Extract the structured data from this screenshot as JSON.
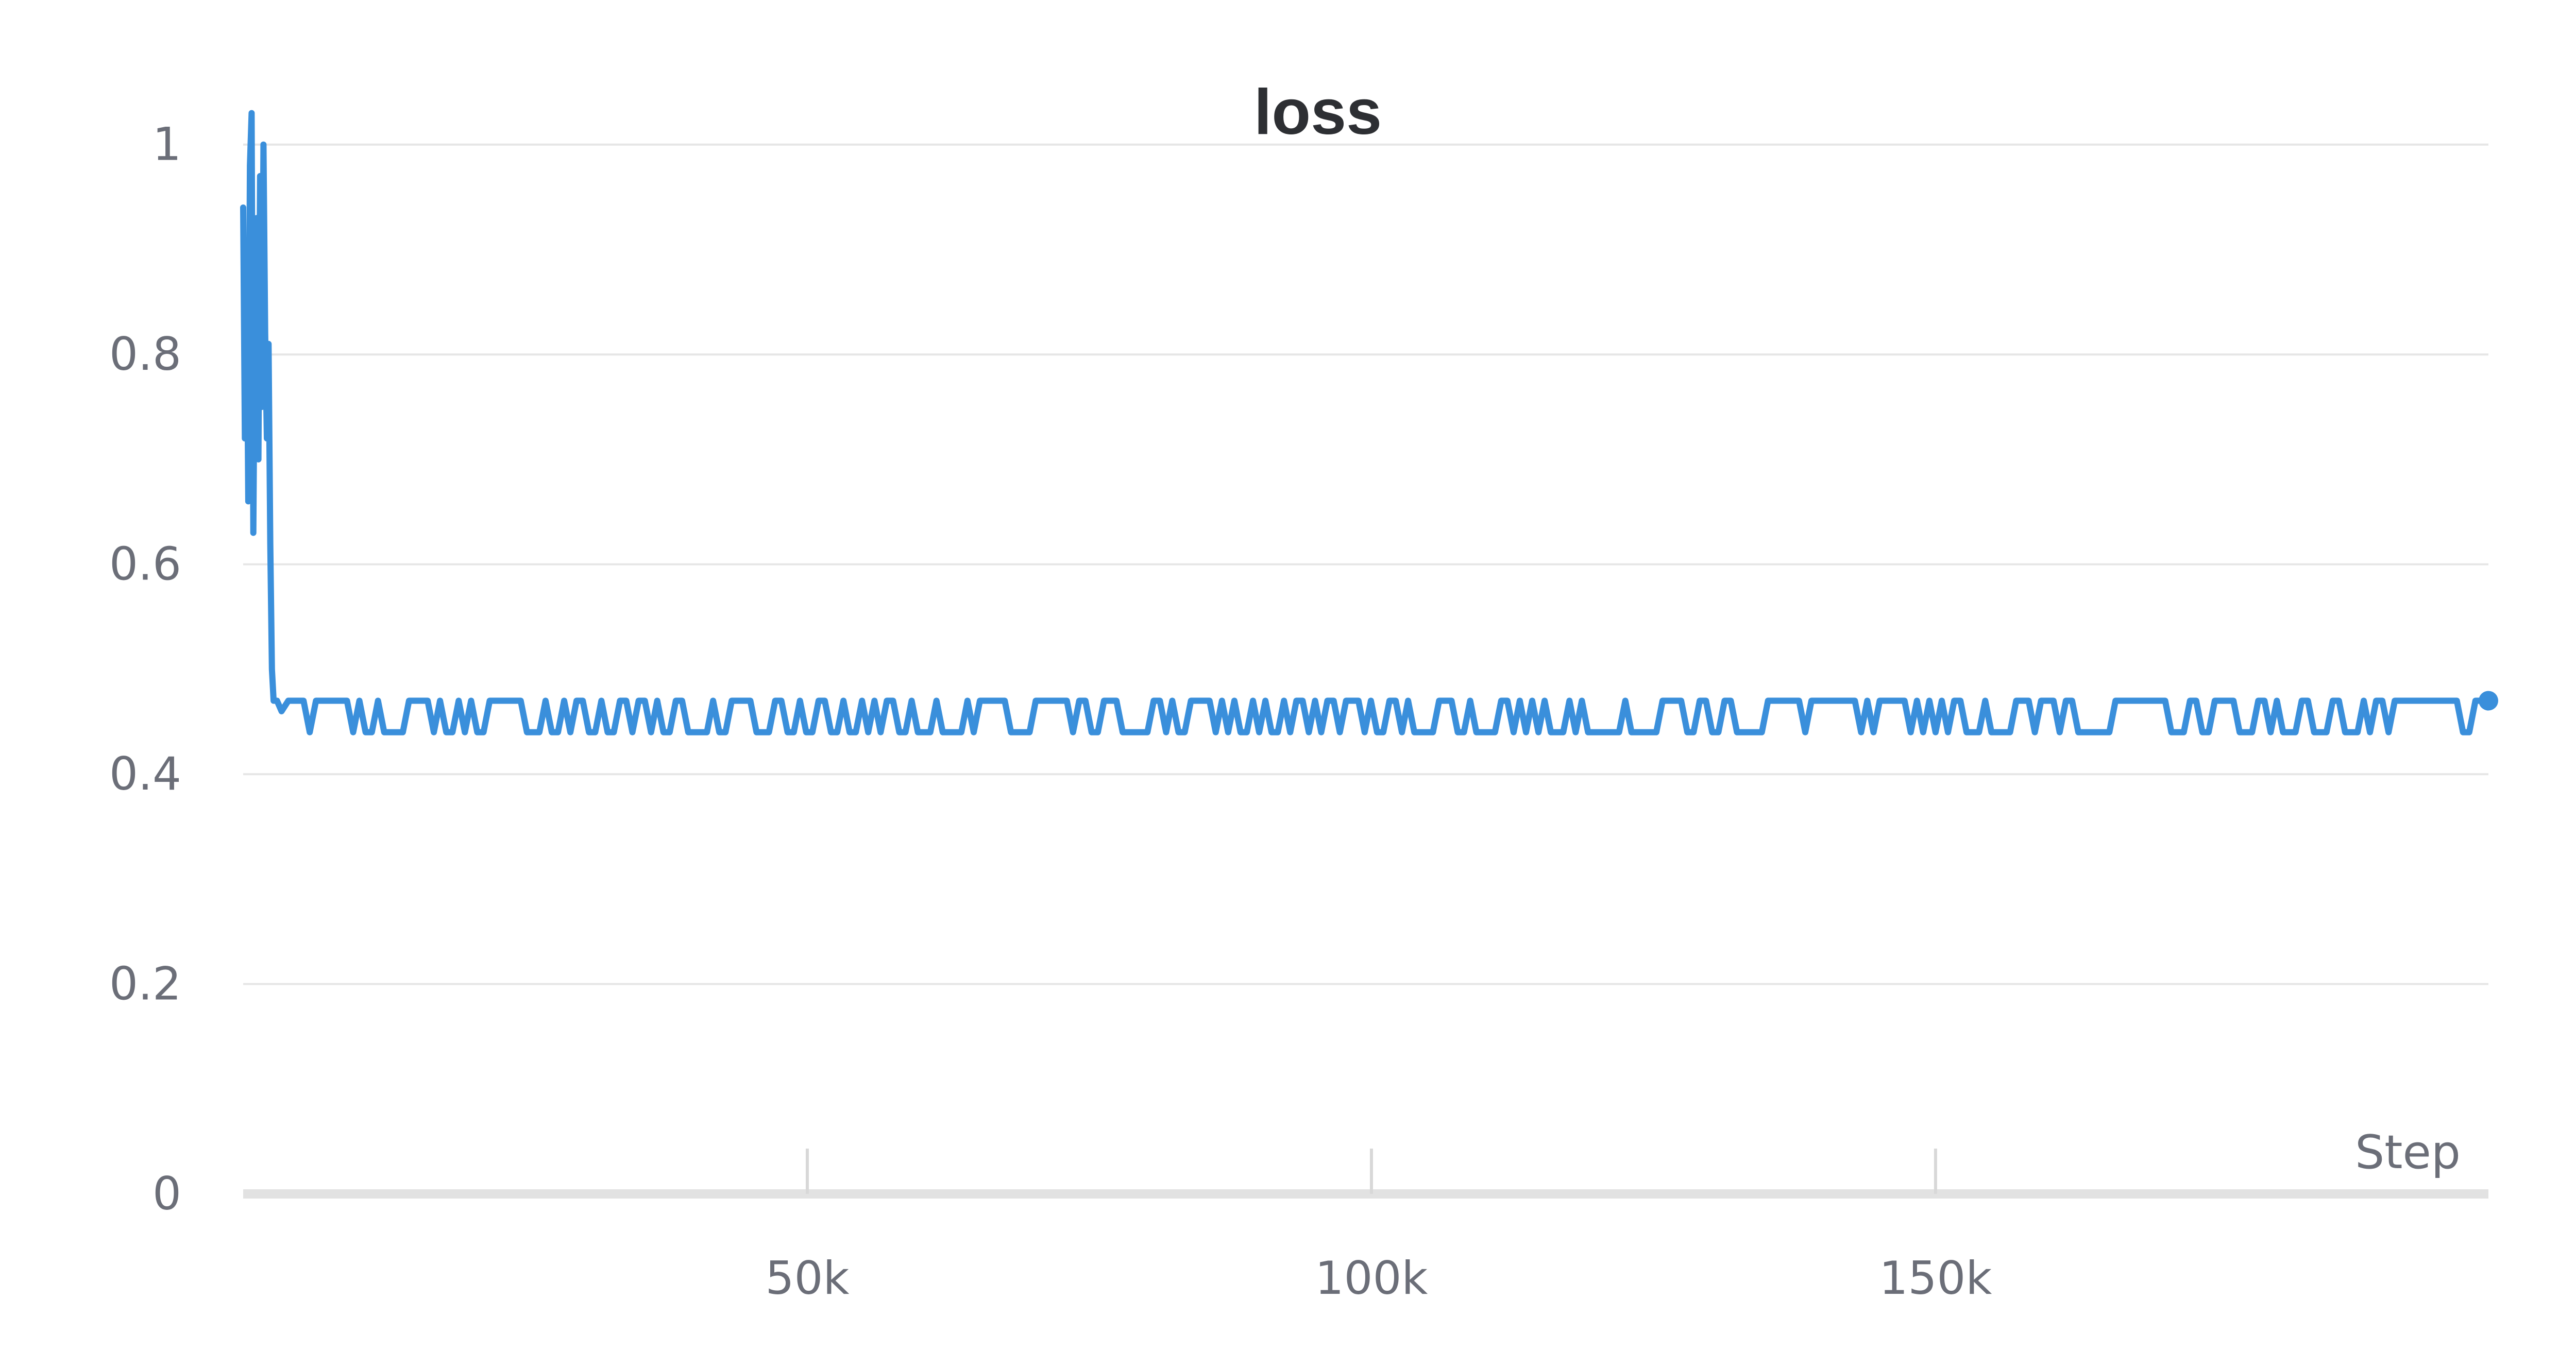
{
  "colors": {
    "series": "#3a8fdb",
    "grid": "#e6e6e6",
    "axis": "#e2e2e2",
    "title": "#2d2f33",
    "tick_text": "#6b6e78"
  },
  "chart_data": {
    "type": "line",
    "title": "loss",
    "xlabel": "Step",
    "ylabel": "",
    "xlim": [
      0,
      199000
    ],
    "ylim": [
      0,
      1.02
    ],
    "grid": true,
    "legend": "none",
    "x_ticks": [
      {
        "value": 50000,
        "label": "50k"
      },
      {
        "value": 100000,
        "label": "100k"
      },
      {
        "value": 150000,
        "label": "150k"
      }
    ],
    "y_ticks": [
      {
        "value": 0,
        "label": "0"
      },
      {
        "value": 0.2,
        "label": "0.2"
      },
      {
        "value": 0.4,
        "label": "0.4"
      },
      {
        "value": 0.6,
        "label": "0.6"
      },
      {
        "value": 0.8,
        "label": "0.8"
      },
      {
        "value": 1,
        "label": "1"
      }
    ],
    "series": [
      {
        "color": "#3a8fdb",
        "points": [
          [
            0,
            0.94
          ],
          [
            150,
            0.72
          ],
          [
            300,
            0.88
          ],
          [
            450,
            0.66
          ],
          [
            600,
            0.98
          ],
          [
            750,
            1.03
          ],
          [
            900,
            0.63
          ],
          [
            1050,
            0.85
          ],
          [
            1200,
            0.93
          ],
          [
            1350,
            0.7
          ],
          [
            1500,
            0.97
          ],
          [
            1650,
            0.75
          ],
          [
            1800,
            1.0
          ],
          [
            1950,
            0.82
          ],
          [
            2100,
            0.72
          ],
          [
            2250,
            0.81
          ],
          [
            2400,
            0.62
          ],
          [
            2550,
            0.5
          ],
          [
            2700,
            0.47
          ],
          [
            3000,
            0.47
          ],
          [
            3400,
            0.46
          ],
          [
            4000,
            0.47
          ],
          [
            4800,
            0.47
          ]
        ],
        "noise_band": {
          "x_start": 4800,
          "x_end": 199000,
          "low": 0.44,
          "high": 0.47,
          "step": 550,
          "seed": 7
        },
        "last_point": [
          199000,
          0.47
        ]
      }
    ]
  }
}
